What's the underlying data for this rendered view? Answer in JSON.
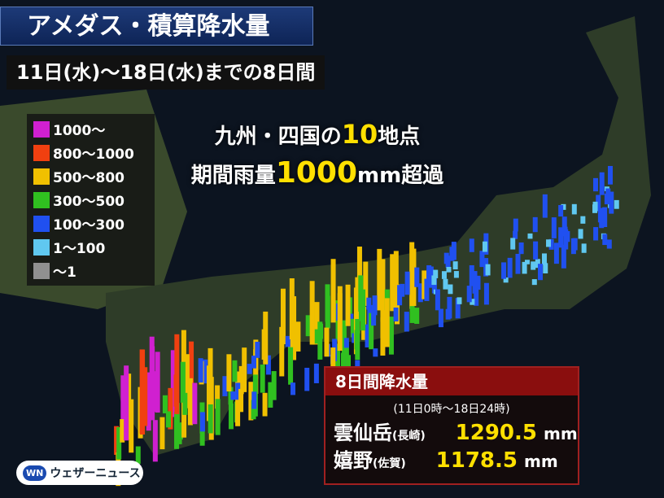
{
  "header": {
    "title": "アメダス・積算降水量",
    "period": "11日(水)〜18日(水)までの8日間"
  },
  "legend": {
    "items": [
      {
        "label": "1000〜",
        "color": "#d020d0"
      },
      {
        "label": "800〜1000",
        "color": "#f04010"
      },
      {
        "label": "500〜800",
        "color": "#f0c000"
      },
      {
        "label": "300〜500",
        "color": "#30c020"
      },
      {
        "label": "100〜300",
        "color": "#2050f0"
      },
      {
        "label": "1〜100",
        "color": "#60c8f0"
      },
      {
        "label": "〜1",
        "color": "#909090"
      }
    ]
  },
  "headline": {
    "line1": [
      "九州・四国の",
      "10",
      "地点"
    ],
    "line2": [
      "期間雨量",
      "1000",
      "mm超過"
    ]
  },
  "info_box": {
    "title": "8日間降水量",
    "subtitle": "(11日0時〜18日24時)",
    "rows": [
      {
        "place": "雲仙岳",
        "pref": "(長崎)",
        "value": "1290.5",
        "unit": "mm"
      },
      {
        "place": "嬉野",
        "pref": "(佐賀)",
        "value": "1178.5",
        "unit": "mm"
      }
    ]
  },
  "logo": {
    "mark": "WN",
    "text": "ウェザーニュース"
  }
}
